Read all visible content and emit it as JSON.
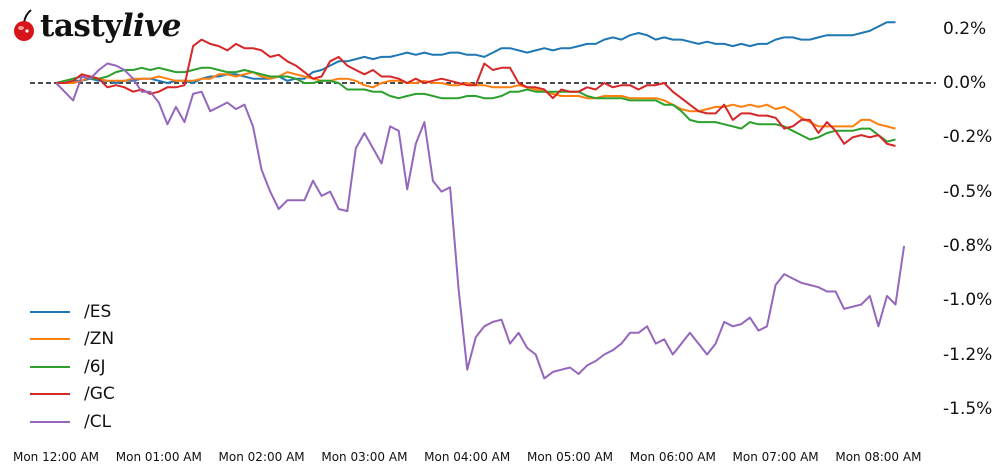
{
  "brand": {
    "name_part1": "tasty",
    "name_part2": "live",
    "icon": "cherry-icon"
  },
  "chart_data": {
    "type": "line",
    "title": "",
    "xlabel": "",
    "ylabel": "",
    "x_ticks": [
      "Mon 12:00 AM",
      "Mon 01:00 AM",
      "Mon 02:00 AM",
      "Mon 03:00 AM",
      "Mon 04:00 AM",
      "Mon 05:00 AM",
      "Mon 06:00 AM",
      "Mon 07:00 AM",
      "Mon 08:00 AM"
    ],
    "y_ticks": [
      "0.2%",
      "0.0%",
      "-0.2%",
      "-0.5%",
      "-0.8%",
      "-1.0%",
      "-1.2%",
      "-1.5%"
    ],
    "y_tick_values": [
      0.25,
      0.0,
      -0.25,
      -0.5,
      -0.75,
      -1.0,
      -1.25,
      -1.5
    ],
    "ylim": [
      -1.6,
      0.35
    ],
    "interval_minutes": 5,
    "baseline": {
      "value": 0.0,
      "style": "dashed"
    },
    "legend_position": "lower-left",
    "grid": false,
    "series": [
      {
        "name": "/ES",
        "color": "#1f77b4",
        "values": [
          0.0,
          0.0,
          0.01,
          0.01,
          0.02,
          0.01,
          0.01,
          0.0,
          0.01,
          0.01,
          0.02,
          0.02,
          0.01,
          0.0,
          0.01,
          0.01,
          0.0,
          0.02,
          0.03,
          0.03,
          0.04,
          0.04,
          0.03,
          0.02,
          0.02,
          0.02,
          0.03,
          0.01,
          0.02,
          0.02,
          0.05,
          0.06,
          0.08,
          0.1,
          0.1,
          0.11,
          0.12,
          0.11,
          0.12,
          0.12,
          0.13,
          0.14,
          0.13,
          0.14,
          0.13,
          0.13,
          0.14,
          0.14,
          0.13,
          0.13,
          0.12,
          0.14,
          0.16,
          0.16,
          0.15,
          0.14,
          0.15,
          0.16,
          0.15,
          0.16,
          0.16,
          0.17,
          0.18,
          0.18,
          0.2,
          0.21,
          0.2,
          0.22,
          0.23,
          0.22,
          0.2,
          0.21,
          0.2,
          0.2,
          0.19,
          0.18,
          0.19,
          0.18,
          0.18,
          0.17,
          0.18,
          0.17,
          0.18,
          0.18,
          0.2,
          0.21,
          0.21,
          0.2,
          0.2,
          0.21,
          0.22,
          0.22,
          0.22,
          0.22,
          0.23,
          0.24,
          0.26,
          0.28,
          0.28
        ]
      },
      {
        "name": "/ZN",
        "color": "#ff7f0e",
        "values": [
          0.0,
          0.0,
          0.0,
          0.01,
          0.03,
          0.02,
          0.01,
          0.01,
          0.01,
          0.02,
          0.02,
          0.02,
          0.03,
          0.02,
          0.01,
          0.01,
          0.01,
          0.02,
          0.02,
          0.04,
          0.04,
          0.03,
          0.04,
          0.05,
          0.03,
          0.02,
          0.03,
          0.05,
          0.04,
          0.03,
          0.02,
          0.01,
          0.01,
          0.02,
          0.02,
          0.01,
          -0.01,
          -0.02,
          0.0,
          0.01,
          0.01,
          0.0,
          0.0,
          0.01,
          0.0,
          0.0,
          -0.01,
          -0.01,
          0.0,
          -0.01,
          -0.01,
          -0.02,
          -0.02,
          -0.02,
          -0.01,
          -0.02,
          -0.03,
          -0.04,
          -0.05,
          -0.06,
          -0.06,
          -0.06,
          -0.07,
          -0.07,
          -0.06,
          -0.06,
          -0.06,
          -0.07,
          -0.07,
          -0.07,
          -0.07,
          -0.08,
          -0.1,
          -0.12,
          -0.13,
          -0.13,
          -0.12,
          -0.11,
          -0.11,
          -0.1,
          -0.11,
          -0.1,
          -0.11,
          -0.1,
          -0.12,
          -0.11,
          -0.13,
          -0.16,
          -0.18,
          -0.2,
          -0.2,
          -0.2,
          -0.2,
          -0.2,
          -0.17,
          -0.17,
          -0.19,
          -0.2,
          -0.21
        ]
      },
      {
        "name": "/6J",
        "color": "#2ca02c",
        "values": [
          0.0,
          0.01,
          0.02,
          0.03,
          0.02,
          0.02,
          0.03,
          0.05,
          0.06,
          0.06,
          0.07,
          0.06,
          0.07,
          0.06,
          0.05,
          0.05,
          0.06,
          0.07,
          0.07,
          0.06,
          0.05,
          0.05,
          0.06,
          0.05,
          0.04,
          0.03,
          0.03,
          0.03,
          0.02,
          0.0,
          0.0,
          0.01,
          0.01,
          0.0,
          -0.03,
          -0.03,
          -0.03,
          -0.04,
          -0.04,
          -0.06,
          -0.07,
          -0.06,
          -0.05,
          -0.05,
          -0.06,
          -0.07,
          -0.07,
          -0.07,
          -0.06,
          -0.06,
          -0.07,
          -0.07,
          -0.06,
          -0.04,
          -0.04,
          -0.03,
          -0.04,
          -0.04,
          -0.04,
          -0.04,
          -0.04,
          -0.04,
          -0.06,
          -0.07,
          -0.07,
          -0.07,
          -0.07,
          -0.08,
          -0.08,
          -0.08,
          -0.08,
          -0.1,
          -0.1,
          -0.13,
          -0.17,
          -0.18,
          -0.18,
          -0.18,
          -0.19,
          -0.2,
          -0.21,
          -0.18,
          -0.19,
          -0.19,
          -0.19,
          -0.2,
          -0.22,
          -0.24,
          -0.26,
          -0.25,
          -0.23,
          -0.22,
          -0.22,
          -0.22,
          -0.21,
          -0.21,
          -0.24,
          -0.27,
          -0.26
        ]
      },
      {
        "name": "/GC",
        "color": "#d62728",
        "values": [
          0.0,
          0.0,
          0.01,
          0.04,
          0.03,
          0.02,
          -0.02,
          -0.01,
          -0.02,
          -0.04,
          -0.03,
          -0.05,
          -0.04,
          -0.02,
          -0.02,
          -0.01,
          0.17,
          0.2,
          0.18,
          0.17,
          0.15,
          0.18,
          0.16,
          0.16,
          0.15,
          0.12,
          0.13,
          0.1,
          0.08,
          0.05,
          0.02,
          0.03,
          0.1,
          0.12,
          0.08,
          0.06,
          0.04,
          0.06,
          0.03,
          0.03,
          0.02,
          0.0,
          0.02,
          0.0,
          0.01,
          0.02,
          0.01,
          0.0,
          -0.01,
          -0.01,
          0.09,
          0.06,
          0.07,
          0.07,
          0.0,
          -0.02,
          -0.02,
          -0.03,
          -0.07,
          -0.03,
          -0.04,
          -0.04,
          -0.02,
          -0.03,
          0.0,
          -0.02,
          -0.01,
          -0.01,
          -0.03,
          -0.01,
          -0.01,
          0.0,
          -0.04,
          -0.07,
          -0.1,
          -0.13,
          -0.14,
          -0.14,
          -0.1,
          -0.17,
          -0.14,
          -0.14,
          -0.15,
          -0.15,
          -0.16,
          -0.21,
          -0.2,
          -0.17,
          -0.17,
          -0.23,
          -0.18,
          -0.22,
          -0.28,
          -0.25,
          -0.24,
          -0.25,
          -0.24,
          -0.28,
          -0.29
        ]
      },
      {
        "name": "/CL",
        "color": "#9467bd",
        "values": [
          0.0,
          -0.04,
          -0.08,
          0.03,
          0.02,
          0.06,
          0.09,
          0.08,
          0.06,
          0.02,
          -0.04,
          -0.04,
          -0.09,
          -0.19,
          -0.11,
          -0.18,
          -0.05,
          -0.04,
          -0.13,
          -0.11,
          -0.09,
          -0.12,
          -0.1,
          -0.2,
          -0.4,
          -0.5,
          -0.58,
          -0.54,
          -0.54,
          -0.54,
          -0.45,
          -0.52,
          -0.5,
          -0.58,
          -0.59,
          -0.3,
          -0.23,
          -0.3,
          -0.37,
          -0.2,
          -0.22,
          -0.49,
          -0.28,
          -0.18,
          -0.45,
          -0.5,
          -0.48,
          -0.95,
          -1.32,
          -1.17,
          -1.12,
          -1.1,
          -1.09,
          -1.2,
          -1.15,
          -1.22,
          -1.25,
          -1.36,
          -1.33,
          -1.32,
          -1.31,
          -1.34,
          -1.3,
          -1.28,
          -1.25,
          -1.23,
          -1.2,
          -1.15,
          -1.15,
          -1.12,
          -1.2,
          -1.18,
          -1.25,
          -1.2,
          -1.15,
          -1.2,
          -1.25,
          -1.2,
          -1.1,
          -1.12,
          -1.11,
          -1.08,
          -1.14,
          -1.12,
          -0.93,
          -0.88,
          -0.9,
          -0.92,
          -0.93,
          -0.94,
          -0.96,
          -0.96,
          -1.04,
          -1.03,
          -1.02,
          -0.98,
          -1.12,
          -0.98,
          -1.02,
          -0.75
        ]
      }
    ]
  },
  "legend": {
    "items": [
      {
        "label": "/ES",
        "color": "#1f77b4"
      },
      {
        "label": "/ZN",
        "color": "#ff7f0e"
      },
      {
        "label": "/6J",
        "color": "#2ca02c"
      },
      {
        "label": "/GC",
        "color": "#d62728"
      },
      {
        "label": "/CL",
        "color": "#9467bd"
      }
    ]
  }
}
